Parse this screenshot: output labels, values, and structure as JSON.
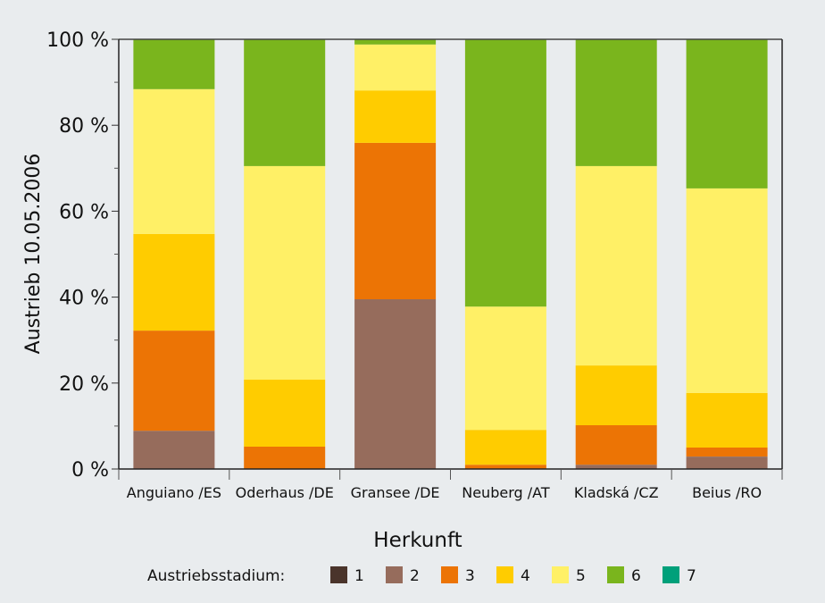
{
  "chart_data": {
    "type": "bar",
    "stacked": true,
    "title": "",
    "xlabel": "Herkunft",
    "ylabel": "Austrieb 10.05.2006",
    "ylim": [
      0,
      100
    ],
    "yticks": [
      0,
      20,
      40,
      60,
      80,
      100
    ],
    "ytick_labels": [
      "0 %",
      "20 %",
      "40 %",
      "60 %",
      "80 %",
      "100 %"
    ],
    "categories": [
      "Anguiano /ES",
      "Oderhaus /DE",
      "Gransee /DE",
      "Neuberg /AT",
      "Kladská /CZ",
      "Beius /RO"
    ],
    "legend_title": "Austriebsstadium:",
    "legend_position": "bottom",
    "series": [
      {
        "name": "1",
        "color": "#4a342b",
        "values": [
          0,
          0,
          0,
          0,
          0,
          0
        ]
      },
      {
        "name": "2",
        "color": "#966c5c",
        "values": [
          8.9,
          0,
          39.5,
          0,
          1.0,
          2.9
        ]
      },
      {
        "name": "3",
        "color": "#ec7405",
        "values": [
          23.3,
          5.2,
          36.4,
          1.0,
          9.2,
          2.1
        ]
      },
      {
        "name": "4",
        "color": "#ffcc00",
        "values": [
          22.5,
          15.6,
          12.2,
          8.1,
          13.9,
          12.7
        ]
      },
      {
        "name": "5",
        "color": "#fff066",
        "values": [
          33.7,
          49.7,
          10.7,
          28.7,
          46.4,
          47.6
        ]
      },
      {
        "name": "6",
        "color": "#7ab51d",
        "values": [
          11.6,
          29.5,
          1.2,
          62.2,
          29.5,
          34.7
        ]
      },
      {
        "name": "7",
        "color": "#00a07a",
        "values": [
          0,
          0,
          0,
          0,
          0,
          0
        ]
      }
    ]
  }
}
